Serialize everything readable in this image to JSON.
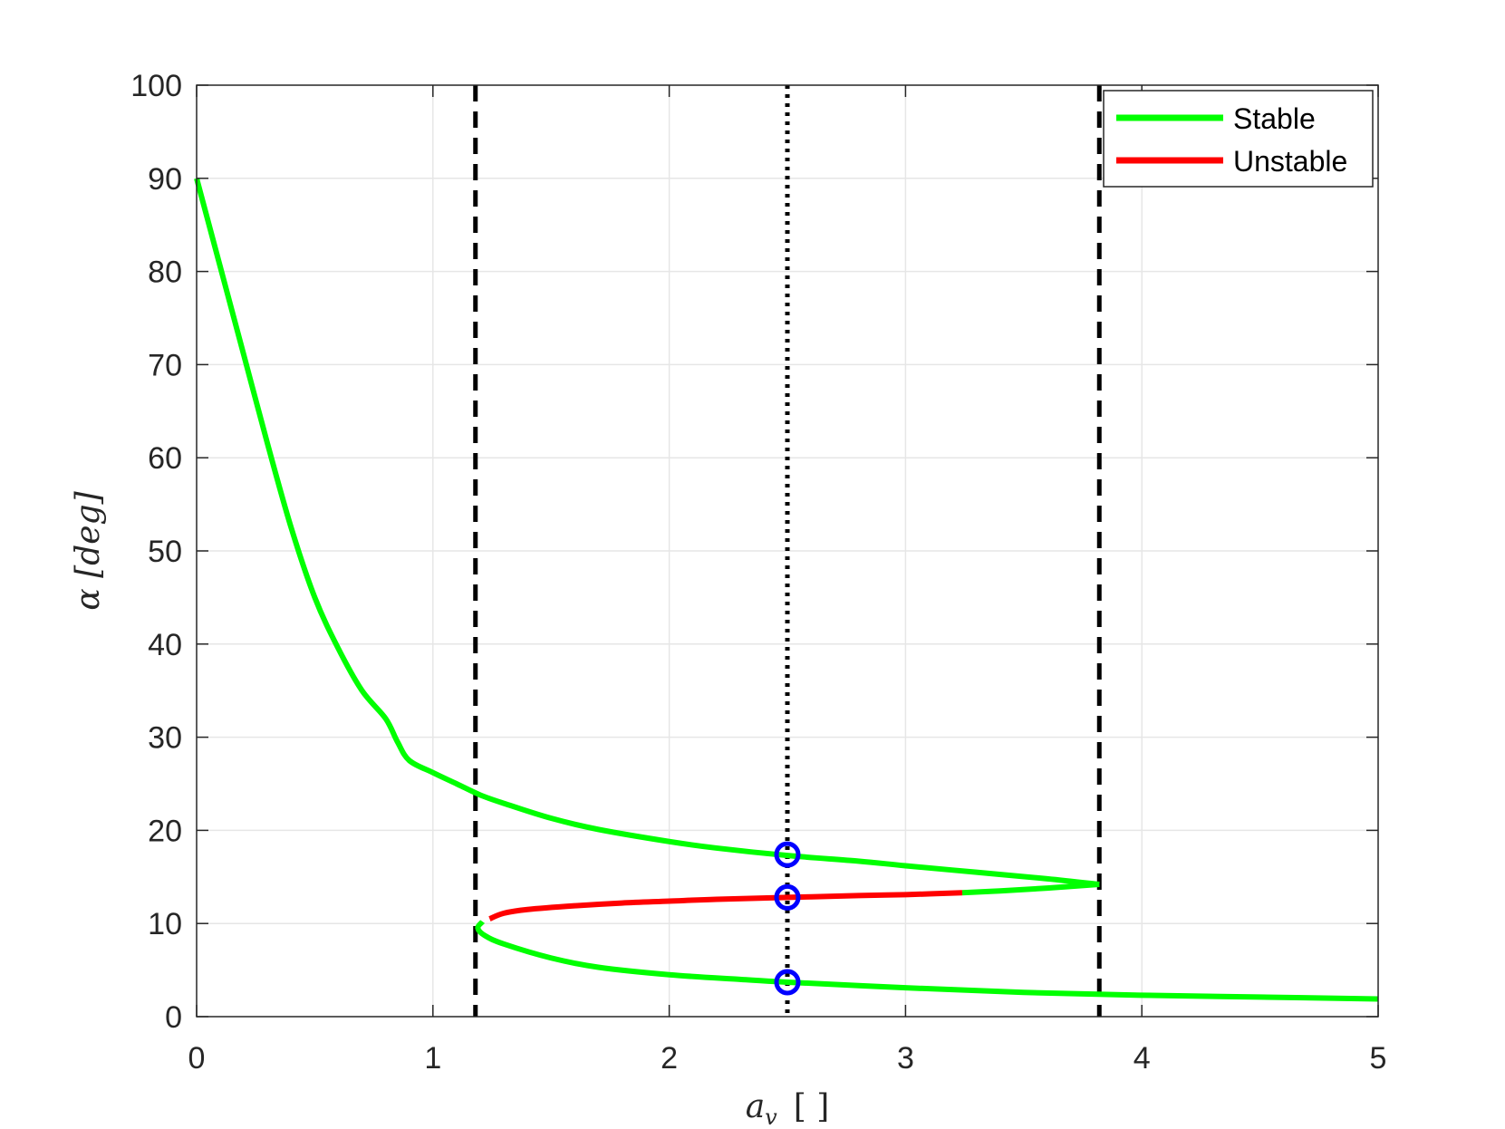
{
  "chart_data": {
    "type": "line",
    "xlabel": "a_v  [ ]",
    "xlabel_main": "a",
    "xlabel_sub": "v",
    "xlabel_unit": "[ ]",
    "ylabel": "α  [deg]",
    "xlim": [
      0,
      5
    ],
    "ylim": [
      0,
      100
    ],
    "xticks": [
      0,
      1,
      2,
      3,
      4,
      5
    ],
    "yticks": [
      0,
      10,
      20,
      30,
      40,
      50,
      60,
      70,
      80,
      90,
      100
    ],
    "grid": true,
    "legend_position": "top-right",
    "colors": {
      "stable": "#00ff00",
      "unstable": "#ff0000",
      "marker": "#0000ff",
      "reference": "#000000",
      "grid": "#e6e6e6"
    },
    "series": [
      {
        "name": "Stable",
        "color": "#00ff00",
        "segments": [
          [
            [
              0,
              90
            ],
            [
              0.1,
              80.5
            ],
            [
              0.2,
              71
            ],
            [
              0.3,
              61.5
            ],
            [
              0.4,
              52.5
            ],
            [
              0.5,
              45
            ],
            [
              0.6,
              39.5
            ],
            [
              0.7,
              35
            ],
            [
              0.8,
              32
            ],
            [
              0.85,
              29.5
            ],
            [
              0.9,
              27.5
            ],
            [
              1.0,
              26.2
            ],
            [
              1.1,
              25
            ],
            [
              1.2,
              23.8
            ],
            [
              1.3,
              22.9
            ],
            [
              1.5,
              21.3
            ],
            [
              1.7,
              20.1
            ],
            [
              2.0,
              18.8
            ],
            [
              2.2,
              18.1
            ],
            [
              2.5,
              17.3
            ],
            [
              2.8,
              16.7
            ],
            [
              3.0,
              16.2
            ],
            [
              3.3,
              15.5
            ],
            [
              3.6,
              14.8
            ],
            [
              3.82,
              14.2
            ]
          ],
          [
            [
              3.82,
              14.2
            ],
            [
              3.6,
              13.8
            ],
            [
              3.4,
              13.5
            ],
            [
              3.24,
              13.3
            ]
          ],
          [
            [
              1.21,
              10.2
            ],
            [
              1.19,
              9.5
            ],
            [
              1.22,
              8.7
            ],
            [
              1.3,
              7.8
            ],
            [
              1.5,
              6.3
            ],
            [
              1.7,
              5.3
            ],
            [
              2.0,
              4.5
            ],
            [
              2.3,
              4.0
            ],
            [
              2.5,
              3.7
            ],
            [
              3.0,
              3.1
            ],
            [
              3.5,
              2.6
            ],
            [
              4.0,
              2.3
            ],
            [
              4.5,
              2.1
            ],
            [
              5.0,
              1.9
            ]
          ]
        ]
      },
      {
        "name": "Unstable",
        "color": "#ff0000",
        "segments": [
          [
            [
              1.24,
              10.5
            ],
            [
              1.3,
              11.1
            ],
            [
              1.4,
              11.5
            ],
            [
              1.6,
              11.9
            ],
            [
              1.8,
              12.2
            ],
            [
              2.0,
              12.4
            ],
            [
              2.2,
              12.6
            ],
            [
              2.5,
              12.8
            ],
            [
              2.8,
              13.0
            ],
            [
              3.0,
              13.1
            ],
            [
              3.24,
              13.3
            ]
          ]
        ]
      }
    ],
    "reference_lines": [
      {
        "x": 1.18,
        "style": "dashed"
      },
      {
        "x": 2.5,
        "style": "dotted"
      },
      {
        "x": 3.82,
        "style": "dashed"
      }
    ],
    "markers": [
      {
        "x": 2.5,
        "y": 17.4
      },
      {
        "x": 2.5,
        "y": 12.8
      },
      {
        "x": 2.5,
        "y": 3.7
      }
    ]
  }
}
